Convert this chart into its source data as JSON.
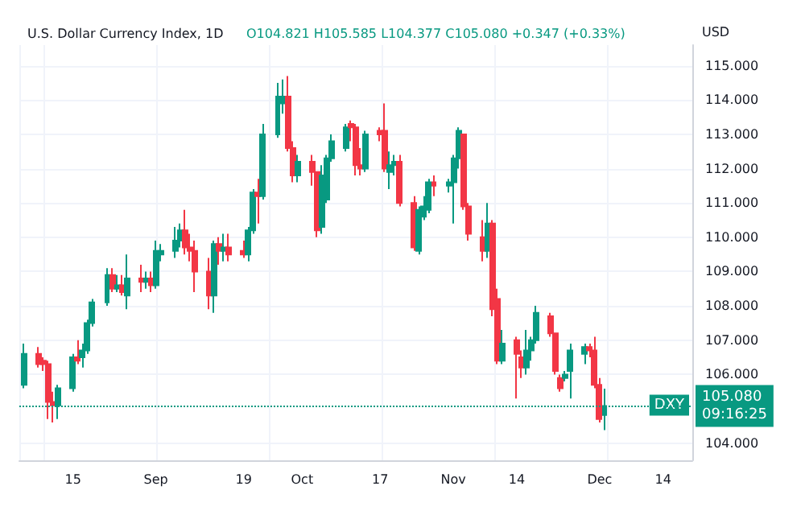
{
  "chart_data": {
    "type": "candlestick",
    "title": "U.S. Dollar Currency Index, 1D",
    "subtitle": "O104.821 H105.585 L104.377 C105.080 +0.347 (+0.33%)",
    "ylabel": "USD",
    "x": [
      "--08-05",
      "--08-08",
      "--08-09",
      "--08-10",
      "--08-11",
      "--08-12",
      "--08-15",
      "--08-16",
      "--08-17",
      "--08-18",
      "--08-19",
      "--08-22",
      "--08-23",
      "--08-24",
      "--08-25",
      "--08-26",
      "--08-29",
      "--08-30",
      "--08-31",
      "--09-01",
      "--09-02",
      "--09-05",
      "--09-06",
      "--09-07",
      "--09-08",
      "--09-09",
      "--09-12",
      "--09-13",
      "--09-14",
      "--09-15",
      "--09-16",
      "--09-19",
      "--09-20",
      "--09-21",
      "--09-22",
      "--09-23",
      "--09-26",
      "--09-27",
      "--09-28",
      "--09-29",
      "--09-30",
      "--10-03",
      "--10-04",
      "--10-05",
      "--10-06",
      "--10-07",
      "--10-10",
      "--10-11",
      "--10-12",
      "--10-13",
      "--10-14",
      "--10-17",
      "--10-18",
      "--10-19",
      "--10-20",
      "--10-21",
      "--10-24",
      "--10-25",
      "--10-26",
      "--10-27",
      "--10-28",
      "--10-31",
      "--11-01",
      "--11-02",
      "--11-03",
      "--11-04",
      "--11-07",
      "--11-08",
      "--11-09",
      "--11-10",
      "--11-11",
      "--11-14",
      "--11-15",
      "--11-16",
      "--11-17",
      "--11-18",
      "--11-21",
      "--11-22",
      "--11-23",
      "--11-24",
      "--11-25",
      "--11-28",
      "--11-29",
      "--11-30",
      "--12-01",
      "--12-02"
    ],
    "ohlc": [
      [
        105.7,
        106.9,
        105.6,
        106.6
      ],
      [
        106.6,
        106.8,
        106.2,
        106.3
      ],
      [
        106.4,
        106.5,
        106.1,
        106.3
      ],
      [
        106.3,
        106.4,
        104.7,
        105.2
      ],
      [
        105.2,
        105.5,
        104.6,
        105.1
      ],
      [
        105.1,
        105.7,
        104.7,
        105.6
      ],
      [
        105.6,
        106.6,
        105.5,
        106.5
      ],
      [
        106.5,
        107.0,
        106.3,
        106.4
      ],
      [
        106.5,
        106.9,
        106.2,
        106.7
      ],
      [
        106.7,
        107.6,
        106.6,
        107.5
      ],
      [
        107.5,
        108.2,
        107.4,
        108.1
      ],
      [
        108.1,
        109.1,
        108.0,
        108.9
      ],
      [
        108.9,
        109.1,
        108.4,
        108.5
      ],
      [
        108.5,
        108.9,
        108.4,
        108.6
      ],
      [
        108.6,
        108.9,
        108.3,
        108.4
      ],
      [
        108.3,
        109.5,
        107.9,
        108.8
      ],
      [
        108.8,
        109.2,
        108.4,
        108.7
      ],
      [
        108.7,
        109.0,
        108.5,
        108.8
      ],
      [
        108.8,
        109.0,
        108.4,
        108.6
      ],
      [
        108.6,
        109.9,
        108.5,
        109.6
      ],
      [
        109.5,
        109.8,
        109.3,
        109.6
      ],
      [
        109.6,
        110.3,
        109.4,
        109.9
      ],
      [
        109.9,
        110.4,
        109.7,
        110.2
      ],
      [
        110.2,
        110.8,
        109.5,
        109.7
      ],
      [
        109.7,
        110.1,
        109.3,
        109.6
      ],
      [
        109.6,
        109.9,
        108.4,
        109.0
      ],
      [
        109.0,
        109.4,
        107.9,
        108.3
      ],
      [
        108.3,
        109.9,
        107.8,
        109.8
      ],
      [
        109.8,
        110.0,
        109.2,
        109.6
      ],
      [
        109.6,
        110.1,
        109.3,
        109.7
      ],
      [
        109.7,
        110.1,
        109.3,
        109.5
      ],
      [
        109.6,
        109.9,
        109.4,
        109.5
      ],
      [
        109.5,
        110.3,
        109.3,
        110.2
      ],
      [
        110.2,
        111.4,
        110.1,
        111.3
      ],
      [
        111.3,
        111.7,
        110.4,
        111.2
      ],
      [
        111.2,
        113.3,
        111.1,
        113.0
      ],
      [
        113.0,
        114.5,
        112.9,
        114.1
      ],
      [
        113.9,
        114.6,
        113.6,
        114.1
      ],
      [
        114.1,
        114.7,
        112.5,
        112.6
      ],
      [
        112.6,
        112.8,
        111.6,
        111.8
      ],
      [
        111.8,
        112.4,
        111.6,
        112.2
      ],
      [
        112.2,
        112.4,
        111.5,
        111.9
      ],
      [
        111.9,
        111.9,
        110.0,
        110.2
      ],
      [
        110.3,
        112.1,
        110.1,
        111.8
      ],
      [
        111.1,
        112.4,
        111.0,
        112.3
      ],
      [
        112.3,
        113.0,
        112.2,
        112.8
      ],
      [
        112.6,
        113.3,
        112.5,
        113.2
      ],
      [
        113.3,
        113.4,
        112.8,
        113.2
      ],
      [
        113.2,
        113.3,
        111.8,
        112.1
      ],
      [
        112.1,
        112.6,
        111.8,
        112.0
      ],
      [
        112.0,
        113.1,
        111.9,
        113.0
      ],
      [
        113.1,
        113.2,
        112.8,
        113.0
      ],
      [
        113.1,
        113.9,
        111.9,
        112.0
      ],
      [
        111.9,
        112.5,
        111.4,
        112.1
      ],
      [
        112.1,
        112.4,
        111.8,
        112.2
      ],
      [
        112.2,
        112.4,
        110.9,
        111.0
      ],
      [
        111.0,
        111.2,
        109.6,
        109.7
      ],
      [
        109.6,
        110.9,
        109.5,
        110.8
      ],
      [
        110.6,
        111.2,
        110.5,
        110.9
      ],
      [
        110.8,
        111.7,
        110.7,
        111.6
      ],
      [
        111.6,
        111.8,
        111.2,
        111.5
      ],
      [
        111.5,
        111.7,
        111.3,
        111.6
      ],
      [
        111.6,
        112.4,
        110.4,
        112.3
      ],
      [
        112.3,
        113.2,
        112.0,
        113.1
      ],
      [
        113.0,
        113.0,
        110.8,
        110.9
      ],
      [
        110.9,
        111.0,
        109.9,
        110.1
      ],
      [
        110.0,
        110.5,
        109.3,
        109.6
      ],
      [
        109.6,
        111.0,
        109.4,
        110.4
      ],
      [
        110.4,
        110.5,
        107.7,
        107.9
      ],
      [
        108.2,
        108.5,
        106.3,
        106.4
      ],
      [
        106.4,
        107.3,
        106.3,
        106.9
      ],
      [
        107.0,
        107.1,
        105.3,
        106.6
      ],
      [
        106.5,
        106.7,
        105.9,
        106.2
      ],
      [
        106.2,
        107.3,
        106.0,
        106.7
      ],
      [
        106.7,
        107.1,
        106.4,
        107.0
      ],
      [
        107.0,
        108.0,
        106.9,
        107.8
      ],
      [
        107.7,
        107.8,
        107.1,
        107.2
      ],
      [
        107.2,
        107.2,
        106.0,
        106.1
      ],
      [
        105.9,
        106.0,
        105.5,
        105.6
      ],
      [
        105.9,
        106.1,
        105.8,
        106.0
      ],
      [
        106.1,
        106.9,
        105.3,
        106.7
      ],
      [
        106.6,
        106.9,
        106.3,
        106.8
      ],
      [
        106.8,
        106.9,
        106.5,
        106.7
      ],
      [
        106.7,
        107.1,
        105.6,
        105.7
      ],
      [
        105.7,
        105.9,
        104.6,
        104.7
      ],
      [
        104.821,
        105.585,
        104.377,
        105.08
      ]
    ],
    "xlim": [
      "--08-04",
      "--12-20"
    ],
    "xticks": [
      {
        "value": "--08-15",
        "label": "15"
      },
      {
        "value": "--09-01",
        "label": "Sep"
      },
      {
        "value": "--09-19",
        "label": "19"
      },
      {
        "value": "--10-01",
        "label": "Oct"
      },
      {
        "value": "--10-17",
        "label": "17"
      },
      {
        "value": "--11-01",
        "label": "Nov"
      },
      {
        "value": "--11-14",
        "label": "14"
      },
      {
        "value": "--12-01",
        "label": "Dec"
      },
      {
        "value": "--12-14",
        "label": "14"
      }
    ],
    "ylim": [
      103.5,
      115.6
    ],
    "yticks": [
      {
        "value": 104,
        "label": "104.000"
      },
      {
        "value": 106,
        "label": "106.000"
      },
      {
        "value": 107,
        "label": "107.000"
      },
      {
        "value": 108,
        "label": "108.000"
      },
      {
        "value": 109,
        "label": "109.000"
      },
      {
        "value": 110,
        "label": "110.000"
      },
      {
        "value": 111,
        "label": "111.000"
      },
      {
        "value": 112,
        "label": "112.000"
      },
      {
        "value": 113,
        "label": "113.000"
      },
      {
        "value": 114,
        "label": "114.000"
      },
      {
        "value": 115,
        "label": "115.000"
      }
    ],
    "ref_lines": [
      {
        "axis": "y",
        "value": 105.08,
        "label": "105.080\n09:16:25",
        "color": "#089981",
        "line_style": "dotted"
      }
    ],
    "annotations": [
      {
        "text": "DXY",
        "y": 105.08
      }
    ],
    "grid": true
  }
}
